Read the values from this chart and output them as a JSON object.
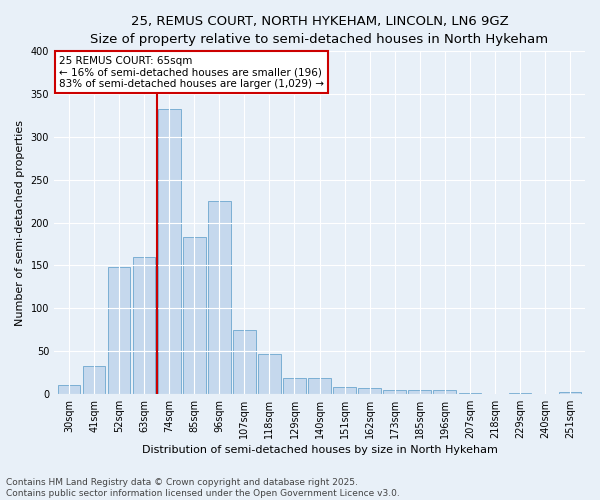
{
  "title": "25, REMUS COURT, NORTH HYKEHAM, LINCOLN, LN6 9GZ",
  "subtitle": "Size of property relative to semi-detached houses in North Hykeham",
  "xlabel": "Distribution of semi-detached houses by size in North Hykeham",
  "ylabel": "Number of semi-detached properties",
  "categories": [
    "30sqm",
    "41sqm",
    "52sqm",
    "63sqm",
    "74sqm",
    "85sqm",
    "96sqm",
    "107sqm",
    "118sqm",
    "129sqm",
    "140sqm",
    "151sqm",
    "162sqm",
    "173sqm",
    "185sqm",
    "196sqm",
    "207sqm",
    "218sqm",
    "229sqm",
    "240sqm",
    "251sqm"
  ],
  "values": [
    10,
    32,
    148,
    160,
    333,
    183,
    225,
    75,
    46,
    18,
    18,
    8,
    7,
    5,
    4,
    4,
    1,
    0,
    1,
    0,
    2
  ],
  "bar_color": "#c5d8ed",
  "bar_edge_color": "#7bafd4",
  "vline_x_index": 3,
  "vline_color": "#cc0000",
  "annotation_text": "25 REMUS COURT: 65sqm\n← 16% of semi-detached houses are smaller (196)\n83% of semi-detached houses are larger (1,029) →",
  "annotation_box_color": "white",
  "annotation_box_edge_color": "#cc0000",
  "background_color": "#e8f0f8",
  "plot_bg_color": "#e8f0f8",
  "ylim": [
    0,
    400
  ],
  "yticks": [
    0,
    50,
    100,
    150,
    200,
    250,
    300,
    350,
    400
  ],
  "footnote": "Contains HM Land Registry data © Crown copyright and database right 2025.\nContains public sector information licensed under the Open Government Licence v3.0.",
  "title_fontsize": 9.5,
  "xlabel_fontsize": 8,
  "ylabel_fontsize": 8,
  "tick_fontsize": 7,
  "annotation_fontsize": 7.5,
  "footnote_fontsize": 6.5
}
